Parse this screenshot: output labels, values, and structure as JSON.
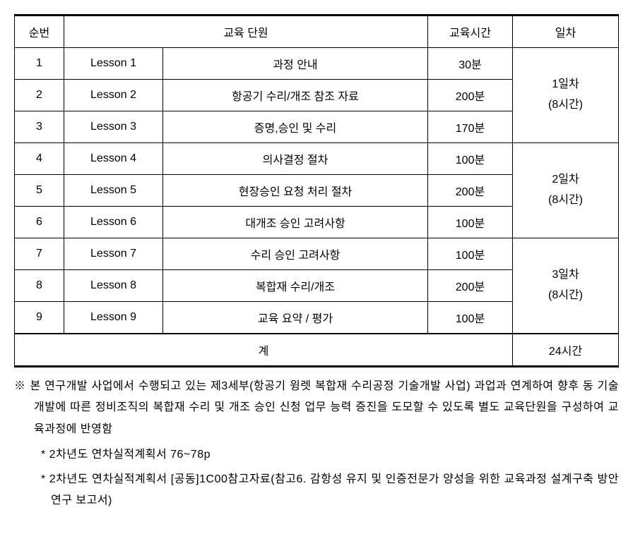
{
  "table": {
    "headers": {
      "num": "순번",
      "unit": "교육 단원",
      "time": "교육시간",
      "day": "일차"
    },
    "rows": [
      {
        "num": "1",
        "lesson": "Lesson 1",
        "title": "과정 안내",
        "time": "30분"
      },
      {
        "num": "2",
        "lesson": "Lesson 2",
        "title": "항공기 수리/개조 참조 자료",
        "time": "200분"
      },
      {
        "num": "3",
        "lesson": "Lesson 3",
        "title": "증명,승인 및 수리",
        "time": "170분"
      },
      {
        "num": "4",
        "lesson": "Lesson 4",
        "title": "의사결정 절차",
        "time": "100분"
      },
      {
        "num": "5",
        "lesson": "Lesson 5",
        "title": "현장승인 요청 처리 절차",
        "time": "200분"
      },
      {
        "num": "6",
        "lesson": "Lesson 6",
        "title": "대개조 승인 고려사항",
        "time": "100분"
      },
      {
        "num": "7",
        "lesson": "Lesson 7",
        "title": "수리 승인 고려사항",
        "time": "100분"
      },
      {
        "num": "8",
        "lesson": "Lesson 8",
        "title": "복합재 수리/개조",
        "time": "200분"
      },
      {
        "num": "9",
        "lesson": "Lesson 9",
        "title": "교육 요약 / 평가",
        "time": "100분"
      }
    ],
    "days": [
      {
        "label_line1": "1일차",
        "label_line2": "(8시간)"
      },
      {
        "label_line1": "2일차",
        "label_line2": "(8시간)"
      },
      {
        "label_line1": "3일차",
        "label_line2": "(8시간)"
      }
    ],
    "total": {
      "label": "계",
      "value": "24시간"
    }
  },
  "notes": {
    "main": "※ 본 연구개발 사업에서 수행되고 있는 제3세부(항공기 윙렛 복합재 수리공정 기술개발 사업) 과업과 연계하여 향후 동 기술 개발에 따른 정비조직의 복합재 수리 및 개조 승인 신청 업무 능력 증진을 도모할 수 있도록 별도 교육단원을 구성하여 교육과정에 반영함",
    "sub1": "* 2차년도 연차실적계획서 76~78p",
    "sub2": "* 2차년도 연차실적계획서 [공동]1C00참고자료(참고6. 감항성 유지 및 인증전문가 양성을 위한 교육과정 설계구축 방안 연구 보고서)"
  },
  "styling": {
    "border_color": "#000000",
    "background_color": "#ffffff",
    "font_size_table": 16,
    "font_size_notes": 16,
    "top_border_width": 3,
    "total_top_border_width": 2,
    "bottom_border_width": 3,
    "col_widths": {
      "num": 70,
      "lesson": 140,
      "time": 120,
      "day": 150
    }
  }
}
